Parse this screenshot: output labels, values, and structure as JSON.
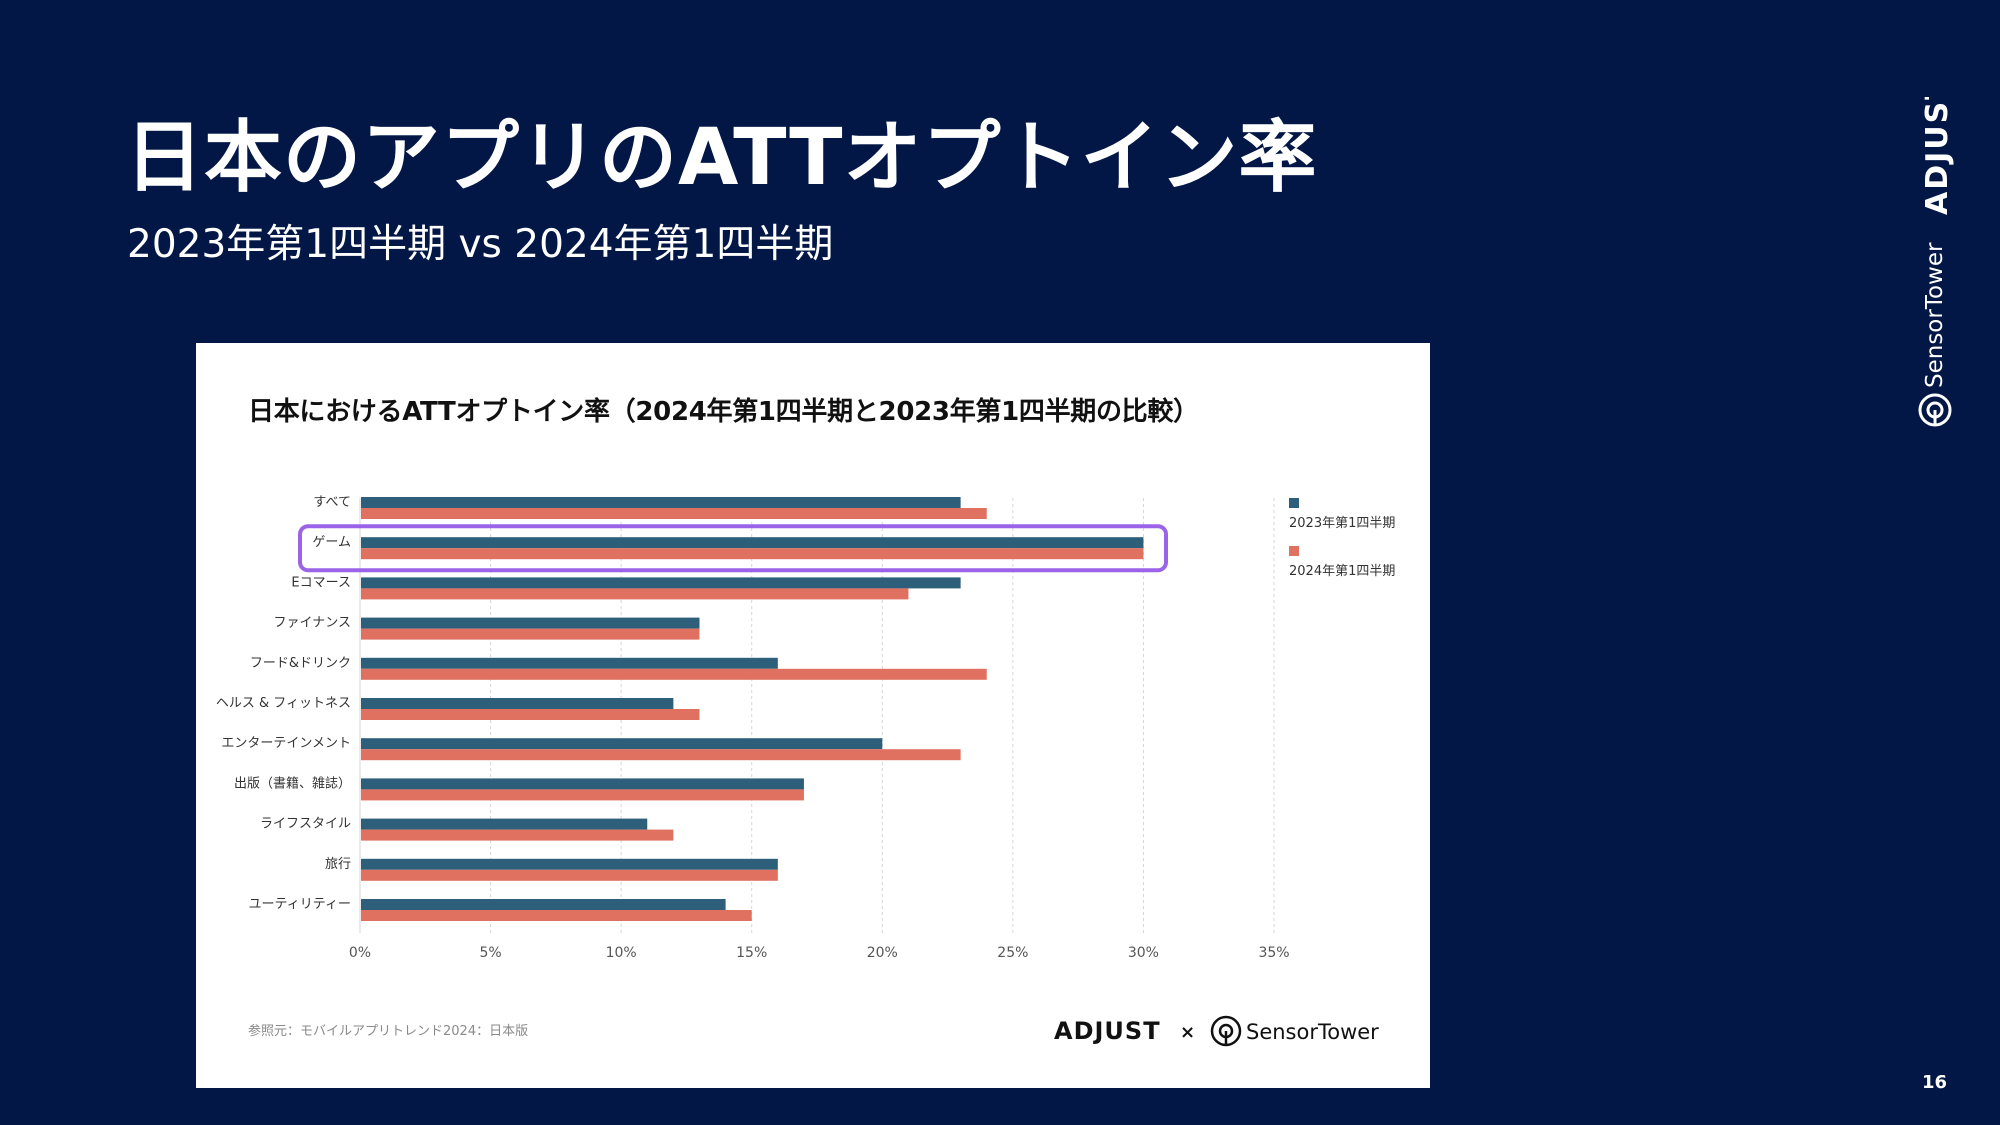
{
  "slide": {
    "title": "日本のアプリのATTオプトイン率",
    "subtitle": "2023年第1四半期 vs 2024年第1四半期",
    "page_number": "16",
    "brand_adjust": "ADJUST",
    "brand_sensor": "SensorTower"
  },
  "chart_data": {
    "type": "bar",
    "orientation": "horizontal",
    "title": "日本におけるATTオプトイン率（2024年第1四半期と2023年第1四半期の比較）",
    "categories": [
      "すべて",
      "ゲーム",
      "Eコマース",
      "ファイナンス",
      "フード&ドリンク",
      "ヘルス & フィットネス",
      "エンターテインメント",
      "出版（書籍、雑誌）",
      "ライフスタイル",
      "旅行",
      "ユーティリティー"
    ],
    "series": [
      {
        "name": "2023年第1四半期",
        "color": "#2e5f7a",
        "values": [
          23,
          30,
          23,
          13,
          16,
          12,
          20,
          17,
          11,
          16,
          14
        ]
      },
      {
        "name": "2024年第1四半期",
        "color": "#e07060",
        "values": [
          24,
          30,
          21,
          13,
          24,
          13,
          23,
          17,
          12,
          16,
          15
        ]
      }
    ],
    "xlim": [
      0,
      35
    ],
    "xticks": [
      "0%",
      "5%",
      "10%",
      "15%",
      "20%",
      "25%",
      "30%",
      "35%"
    ],
    "grid": true,
    "legend_position": "right",
    "highlight": {
      "category": "ゲーム",
      "color": "#9b63e8"
    },
    "source": "参照元：モバイルアプリトレンド2024：日本版",
    "footer": {
      "left_logo": "ADJUST",
      "separator": "×",
      "right_logo": "SensorTower"
    }
  }
}
